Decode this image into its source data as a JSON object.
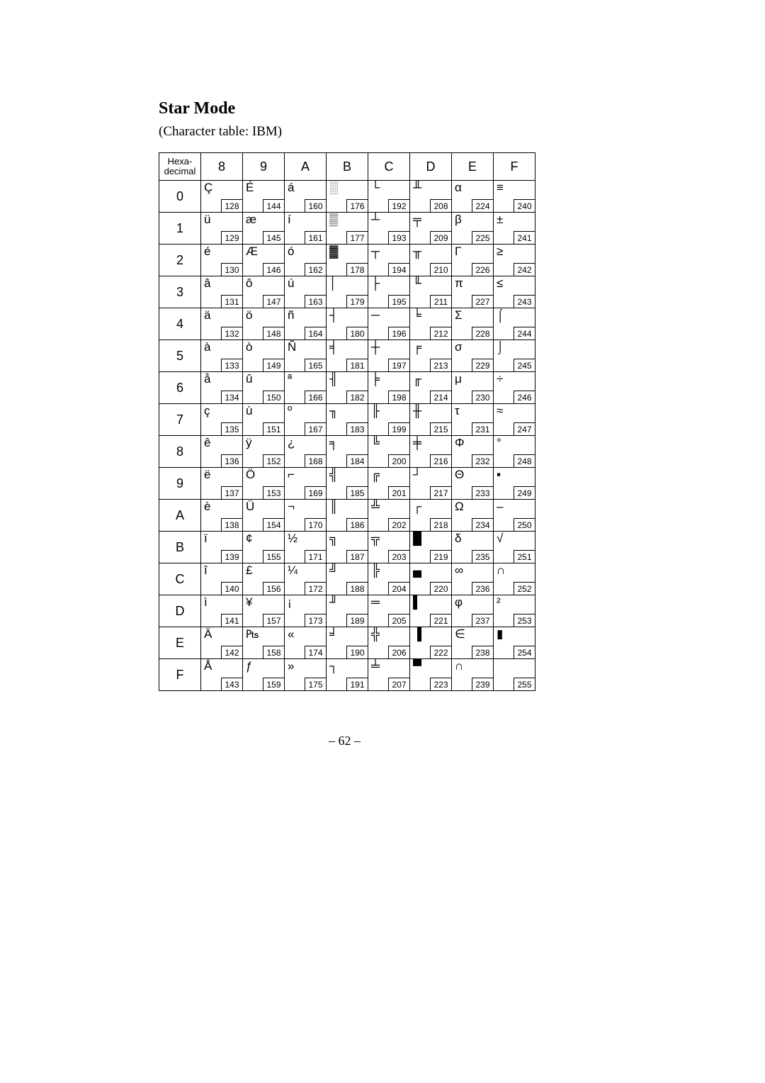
{
  "heading": "Star Mode",
  "subheading": "(Character table: IBM)",
  "corner_label": "Hexa-\ndecimal",
  "page_number": "– 62 –",
  "col_headers": [
    "8",
    "9",
    "A",
    "B",
    "C",
    "D",
    "E",
    "F"
  ],
  "row_headers": [
    "0",
    "1",
    "2",
    "3",
    "4",
    "5",
    "6",
    "7",
    "8",
    "9",
    "A",
    "B",
    "C",
    "D",
    "E",
    "F"
  ],
  "grid": [
    [
      {
        "g": "Ç",
        "d": 128
      },
      {
        "g": "É",
        "d": 144
      },
      {
        "g": "á",
        "d": 160
      },
      {
        "g": "░",
        "d": 176
      },
      {
        "g": "└",
        "d": 192
      },
      {
        "g": "╨",
        "d": 208
      },
      {
        "g": "α",
        "d": 224
      },
      {
        "g": "≡",
        "d": 240
      }
    ],
    [
      {
        "g": "ü",
        "d": 129
      },
      {
        "g": "æ",
        "d": 145
      },
      {
        "g": "í",
        "d": 161
      },
      {
        "g": "▒",
        "d": 177
      },
      {
        "g": "┴",
        "d": 193
      },
      {
        "g": "╤",
        "d": 209
      },
      {
        "g": "β",
        "d": 225
      },
      {
        "g": "±",
        "d": 241
      }
    ],
    [
      {
        "g": "é",
        "d": 130
      },
      {
        "g": "Æ",
        "d": 146
      },
      {
        "g": "ó",
        "d": 162
      },
      {
        "g": "▓",
        "d": 178
      },
      {
        "g": "┬",
        "d": 194
      },
      {
        "g": "╥",
        "d": 210
      },
      {
        "g": "Γ",
        "d": 226
      },
      {
        "g": "≥",
        "d": 242
      }
    ],
    [
      {
        "g": "â",
        "d": 131
      },
      {
        "g": "ô",
        "d": 147
      },
      {
        "g": "ú",
        "d": 163
      },
      {
        "g": "│",
        "d": 179
      },
      {
        "g": "├",
        "d": 195
      },
      {
        "g": "╙",
        "d": 211
      },
      {
        "g": "π",
        "d": 227
      },
      {
        "g": "≤",
        "d": 243
      }
    ],
    [
      {
        "g": "ä",
        "d": 132
      },
      {
        "g": "ö",
        "d": 148
      },
      {
        "g": "ñ",
        "d": 164
      },
      {
        "g": "┤",
        "d": 180
      },
      {
        "g": "─",
        "d": 196
      },
      {
        "g": "╘",
        "d": 212
      },
      {
        "g": "Σ",
        "d": 228
      },
      {
        "g": "⌠",
        "d": 244
      }
    ],
    [
      {
        "g": "à",
        "d": 133
      },
      {
        "g": "ò",
        "d": 149
      },
      {
        "g": "Ñ",
        "d": 165
      },
      {
        "g": "╡",
        "d": 181
      },
      {
        "g": "┼",
        "d": 197
      },
      {
        "g": "╒",
        "d": 213
      },
      {
        "g": "σ",
        "d": 229
      },
      {
        "g": "⌡",
        "d": 245
      }
    ],
    [
      {
        "g": "å",
        "d": 134
      },
      {
        "g": "û",
        "d": 150
      },
      {
        "g": "ª",
        "d": 166
      },
      {
        "g": "╢",
        "d": 182
      },
      {
        "g": "╞",
        "d": 198
      },
      {
        "g": "╓",
        "d": 214
      },
      {
        "g": "μ",
        "d": 230
      },
      {
        "g": "÷",
        "d": 246
      }
    ],
    [
      {
        "g": "ç",
        "d": 135
      },
      {
        "g": "ù",
        "d": 151
      },
      {
        "g": "º",
        "d": 167
      },
      {
        "g": "╖",
        "d": 183
      },
      {
        "g": "╟",
        "d": 199
      },
      {
        "g": "╫",
        "d": 215
      },
      {
        "g": "τ",
        "d": 231
      },
      {
        "g": "≈",
        "d": 247
      }
    ],
    [
      {
        "g": "ê",
        "d": 136
      },
      {
        "g": "ÿ",
        "d": 152
      },
      {
        "g": "¿",
        "d": 168
      },
      {
        "g": "╕",
        "d": 184
      },
      {
        "g": "╚",
        "d": 200
      },
      {
        "g": "╪",
        "d": 216
      },
      {
        "g": "Φ",
        "d": 232
      },
      {
        "g": "°",
        "d": 248
      }
    ],
    [
      {
        "g": "ë",
        "d": 137
      },
      {
        "g": "Ö",
        "d": 153
      },
      {
        "g": "⌐",
        "d": 169
      },
      {
        "g": "╣",
        "d": 185
      },
      {
        "g": "╔",
        "d": 201
      },
      {
        "g": "┘",
        "d": 217
      },
      {
        "g": "Θ",
        "d": 233
      },
      {
        "g": "▪",
        "d": 249
      }
    ],
    [
      {
        "g": "è",
        "d": 138
      },
      {
        "g": "Ü",
        "d": 154
      },
      {
        "g": "¬",
        "d": 170
      },
      {
        "g": "║",
        "d": 186
      },
      {
        "g": "╩",
        "d": 202
      },
      {
        "g": "┌",
        "d": 218
      },
      {
        "g": "Ω",
        "d": 234
      },
      {
        "g": "–",
        "d": 250
      }
    ],
    [
      {
        "g": "ï",
        "d": 139
      },
      {
        "g": "¢",
        "d": 155
      },
      {
        "g": "½",
        "d": 171
      },
      {
        "g": "╗",
        "d": 187
      },
      {
        "g": "╦",
        "d": 203
      },
      {
        "g": "█",
        "d": 219
      },
      {
        "g": "δ",
        "d": 235
      },
      {
        "g": "√",
        "d": 251
      }
    ],
    [
      {
        "g": "î",
        "d": 140
      },
      {
        "g": "£",
        "d": 156
      },
      {
        "g": "¼",
        "d": 172
      },
      {
        "g": "╝",
        "d": 188
      },
      {
        "g": "╠",
        "d": 204
      },
      {
        "g": "▄",
        "d": 220
      },
      {
        "g": "∞",
        "d": 236
      },
      {
        "g": "∩",
        "d": 252
      }
    ],
    [
      {
        "g": "ì",
        "d": 141
      },
      {
        "g": "¥",
        "d": 157
      },
      {
        "g": "¡",
        "d": 173
      },
      {
        "g": "╜",
        "d": 189
      },
      {
        "g": "═",
        "d": 205
      },
      {
        "g": "▌",
        "d": 221
      },
      {
        "g": "φ",
        "d": 237
      },
      {
        "g": "²",
        "d": 253
      }
    ],
    [
      {
        "g": "Ä",
        "d": 142
      },
      {
        "g": "₧",
        "d": 158
      },
      {
        "g": "«",
        "d": 174
      },
      {
        "g": "╛",
        "d": 190
      },
      {
        "g": "╬",
        "d": 206
      },
      {
        "g": "▐",
        "d": 222
      },
      {
        "g": "∈",
        "d": 238
      },
      {
        "g": "▮",
        "d": 254
      }
    ],
    [
      {
        "g": "Å",
        "d": 143
      },
      {
        "g": "ƒ",
        "d": 159
      },
      {
        "g": "»",
        "d": 175
      },
      {
        "g": "┐",
        "d": 191
      },
      {
        "g": "╧",
        "d": 207
      },
      {
        "g": "▀",
        "d": 223
      },
      {
        "g": "∩",
        "d": 239
      },
      {
        "g": " ",
        "d": 255
      }
    ]
  ]
}
